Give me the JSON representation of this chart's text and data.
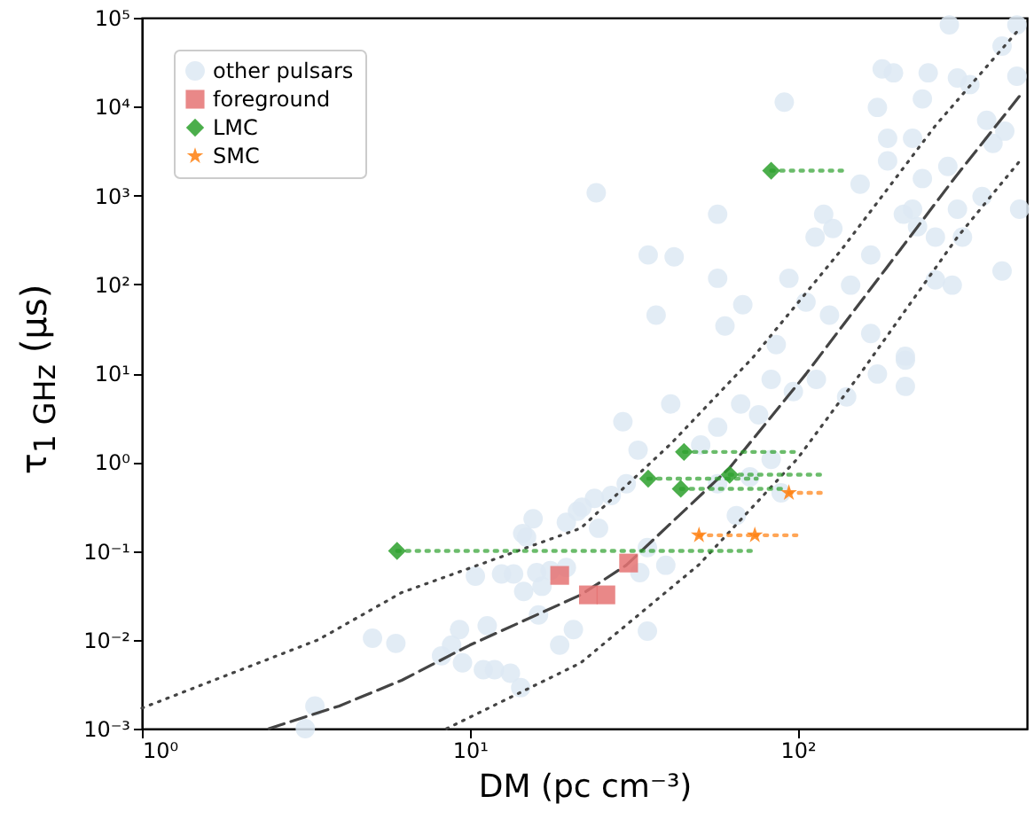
{
  "chart_data": {
    "type": "scatter",
    "xlabel": "DM (pc cm⁻³)",
    "ylabel": "τ$_{1 GHz}$ (μs)",
    "log": "xy",
    "grid": false,
    "legend": "top left",
    "xlim": [
      1,
      500
    ],
    "xticks": [
      {
        "value": 1,
        "label": "10⁰"
      },
      {
        "value": 10,
        "label": "10¹"
      },
      {
        "value": 100,
        "label": "10²"
      }
    ],
    "ylim": [
      0.001,
      100000
    ],
    "yticks": [
      {
        "value": 0.001,
        "label": "10⁻³"
      },
      {
        "value": 0.01,
        "label": "10⁻²"
      },
      {
        "value": 0.1,
        "label": "10⁻¹"
      },
      {
        "value": 1,
        "label": "10⁰"
      },
      {
        "value": 10,
        "label": "10¹"
      },
      {
        "value": 100,
        "label": "10²"
      },
      {
        "value": 1000,
        "label": "10³"
      },
      {
        "value": 10000,
        "label": "10⁴"
      },
      {
        "value": 100000,
        "label": "10⁵"
      }
    ],
    "series": [
      {
        "name": "other pulsars",
        "marker": "circle",
        "color": "#dde9f3",
        "x": [
          3.37,
          3.15,
          5.05,
          5.95,
          8.2,
          8.8,
          9.3,
          9.5,
          11.3,
          11.0,
          11.9,
          13.3,
          14.3,
          18.8,
          20.7,
          15.6,
          14.5,
          14.9,
          10.4,
          12.5,
          13.6,
          14.6,
          16.0,
          16.6,
          17.6,
          19.7,
          19.7,
          21.3,
          16.2,
          24,
          27,
          30,
          32.6,
          41,
          29.3,
          34.8,
          39.6,
          34.8,
          33,
          50.6,
          57,
          67,
          76,
          83,
          97,
          114,
          141,
          175,
          213,
          213,
          71.5,
          83,
          89,
          65,
          57,
          24.7,
          22,
          24.3,
          57,
          35,
          42,
          57,
          37,
          60,
          68,
          94,
          91,
          113,
          128,
          120,
          155,
          188,
          181,
          196,
          240,
          188,
          224,
          250,
          290,
          307,
          335,
          377,
          420,
          466,
          394,
          428,
          287,
          240,
          307,
          263,
          365,
          420,
          475,
          213,
          296,
          232,
          318,
          167,
          210,
          145,
          125,
          106,
          86,
          167,
          263,
          466,
          224,
          175
        ],
        "values": [
          0.0018,
          0.001,
          0.0104,
          0.0091,
          0.0066,
          0.0087,
          0.013,
          0.0055,
          0.0144,
          0.0046,
          0.0046,
          0.0042,
          0.0029,
          0.0087,
          0.013,
          0.23,
          0.157,
          0.143,
          0.052,
          0.055,
          0.055,
          0.035,
          0.057,
          0.04,
          0.06,
          0.065,
          0.21,
          0.28,
          0.019,
          0.39,
          0.42,
          0.57,
          1.36,
          4.5,
          2.84,
          0.109,
          0.069,
          0.0125,
          0.057,
          1.56,
          2.47,
          4.5,
          3.4,
          8.5,
          6.2,
          8.5,
          5.4,
          9.8,
          7.1,
          14,
          0.68,
          1.07,
          0.45,
          0.25,
          0.57,
          0.18,
          0.31,
          1070,
          615,
          214,
          204,
          117,
          45,
          34,
          59,
          117,
          11200,
          340,
          425,
          615,
          1340,
          2450,
          26500,
          24000,
          12200,
          4400,
          4400,
          24000,
          83000,
          21000,
          17700,
          7000,
          48000,
          22000,
          3850,
          5300,
          2120,
          1550,
          700,
          340,
          970,
          141,
          700,
          15.5,
          98,
          445,
          340,
          214,
          615,
          98,
          45,
          63,
          21,
          28,
          112,
          83000,
          700,
          9800
        ]
      },
      {
        "name": "foreground",
        "marker": "square",
        "color": "#e57373",
        "x": [
          18.8,
          30.5,
          23,
          26
        ],
        "values": [
          0.053,
          0.073,
          0.032,
          0.032
        ]
      },
      {
        "name": "LMC",
        "marker": "diamond",
        "color": "#2ca02c",
        "x": [
          6,
          35,
          44,
          45,
          62,
          83
        ],
        "values": [
          0.1,
          0.65,
          0.5,
          1.3,
          0.72,
          1900
        ],
        "xerrors": [
          [
            6,
            72
          ],
          [
            35,
            75
          ],
          [
            44,
            92
          ],
          [
            45,
            100
          ],
          [
            62,
            117
          ],
          [
            83,
            138
          ]
        ]
      },
      {
        "name": "SMC",
        "marker": "star",
        "color": "#ff7f0e",
        "x": [
          50,
          74,
          94
        ],
        "values": [
          0.15,
          0.15,
          0.45
        ],
        "xerrors": [
          [
            50,
            75
          ],
          [
            74,
            101
          ],
          [
            94,
            118
          ]
        ]
      },
      {
        "type": "line",
        "line_style": "dashed",
        "color": "#444444",
        "x": [
          2.44,
          4,
          6.2,
          10,
          21.8,
          30,
          62,
          106,
          187,
          300,
          480
        ],
        "values": [
          0.001,
          0.0018,
          0.0035,
          0.0087,
          0.032,
          0.069,
          0.86,
          9.8,
          155,
          1550,
          13800
        ]
      },
      {
        "type": "line",
        "line_style": "dotted",
        "color": "#444444",
        "x": [
          1,
          3.45,
          6.2,
          21.8,
          41,
          73,
          136,
          263,
          476
        ],
        "values": [
          0.0017,
          0.01,
          0.034,
          0.18,
          1.6,
          15,
          245,
          6100,
          76000
        ]
      },
      {
        "type": "line",
        "line_style": "dotted",
        "color": "#444444",
        "x": [
          8.5,
          21.8,
          50,
          100,
          155,
          307,
          476
        ],
        "values": [
          0.001,
          0.0055,
          0.07,
          1.1,
          9.8,
          340,
          2450
        ]
      }
    ]
  }
}
